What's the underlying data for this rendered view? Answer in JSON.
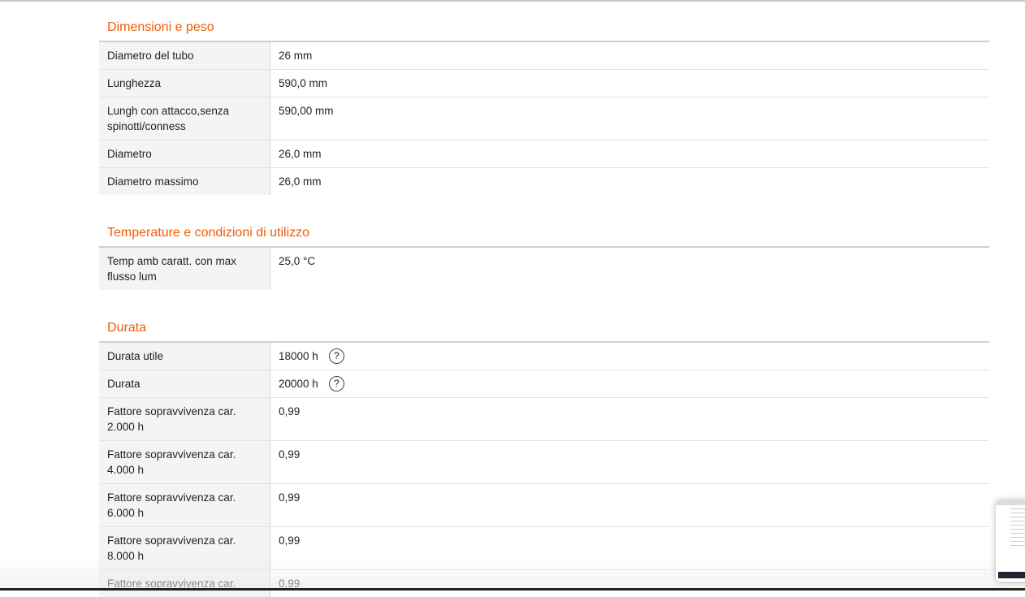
{
  "sections": [
    {
      "title": "Dimensioni e peso",
      "rows": [
        {
          "label": "Diametro del tubo",
          "value": "26 mm"
        },
        {
          "label": "Lunghezza",
          "value": "590,0 mm"
        },
        {
          "label": "Lungh con attacco,senza spinotti/conness",
          "value": "590,00 mm"
        },
        {
          "label": "Diametro",
          "value": "26,0 mm"
        },
        {
          "label": "Diametro massimo",
          "value": "26,0 mm"
        }
      ]
    },
    {
      "title": "Temperature e condizioni di utilizzo",
      "rows": [
        {
          "label": "Temp amb caratt. con max flusso lum",
          "value": "25,0 °C"
        }
      ]
    },
    {
      "title": "Durata",
      "rows": [
        {
          "label": "Durata utile",
          "value": "18000 h",
          "help": "?"
        },
        {
          "label": "Durata",
          "value": "20000 h",
          "help": "?"
        },
        {
          "label": "Fattore sopravvivenza car. 2.000 h",
          "value": "0,99"
        },
        {
          "label": "Fattore sopravvivenza car. 4.000 h",
          "value": "0,99"
        },
        {
          "label": "Fattore sopravvivenza car. 6.000 h",
          "value": "0,99"
        },
        {
          "label": "Fattore sopravvivenza car. 8.000 h",
          "value": "0,99"
        },
        {
          "label": "Fattore sopravvivenza car.",
          "value": "0,99"
        }
      ]
    }
  ],
  "accent": "#f35b04"
}
